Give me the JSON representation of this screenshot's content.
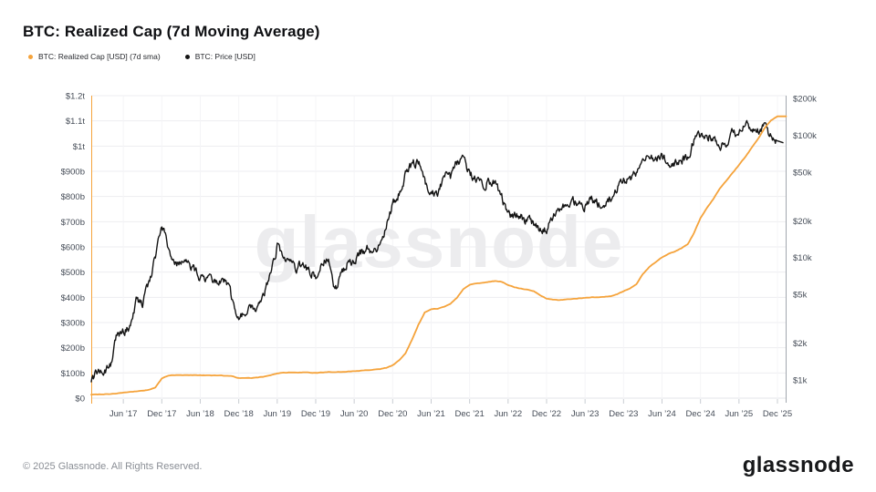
{
  "page": {
    "title": "BTC: Realized Cap (7d Moving Average)",
    "watermark": "glassnode",
    "footer": {
      "copyright": "© 2025 Glassnode. All Rights Reserved.",
      "logo": "glassnode"
    }
  },
  "legend": [
    {
      "label": "BTC: Realized Cap [USD] (7d sma)",
      "color": "#F5A33B"
    },
    {
      "label": "BTC: Price [USD]",
      "color": "#141414"
    }
  ],
  "chart_data": {
    "type": "line",
    "title": "BTC: Realized Cap (7d Moving Average)",
    "grid": true,
    "legend_position": "top-left",
    "x_start_month": "2017-01",
    "x_interval": "monthly",
    "x_axis": {
      "tick_labels": [
        "Jun ’17",
        "Dec ’17",
        "Jun ’18",
        "Dec ’18",
        "Jun ’19",
        "Dec ’19",
        "Jun ’20",
        "Dec ’20",
        "Jun ’21",
        "Dec ’21",
        "Jun ’22",
        "Dec ’22",
        "Jun ’23",
        "Dec ’23",
        "Jun ’24",
        "Dec ’24",
        "Jun ’25",
        "Dec ’25"
      ],
      "first_tick_month_index": 5,
      "tick_every_months": 6
    },
    "left_axis": {
      "scale": "linear",
      "unit": "USD",
      "max_billions": 1200,
      "min_billions": 0,
      "tick_values_billions": [
        1200,
        1100,
        1000,
        900,
        800,
        700,
        600,
        500,
        400,
        300,
        200,
        100,
        0
      ],
      "tick_labels": [
        "$1.2t",
        "$1.1t",
        "$1t",
        "$900b",
        "$800b",
        "$700b",
        "$600b",
        "$500b",
        "$400b",
        "$300b",
        "$200b",
        "$100b",
        "$0"
      ]
    },
    "right_axis": {
      "scale": "log",
      "unit": "USD",
      "top_value": 200000,
      "tick_values": [
        200000,
        100000,
        50000,
        20000,
        10000,
        5000,
        2000,
        1000
      ],
      "tick_labels": [
        "$200k",
        "$100k",
        "$50k",
        "$20k",
        "$10k",
        "$5k",
        "$2k",
        "$1k"
      ]
    },
    "series": [
      {
        "name": "BTC: Realized Cap [USD] (7d sma)",
        "axis": "left",
        "unit": "USD billions",
        "color": "#F5A33B",
        "values": [
          14,
          15,
          16,
          17,
          19,
          22,
          24,
          27,
          30,
          33,
          42,
          78,
          90,
          91,
          91,
          91,
          92,
          91,
          91,
          90,
          90,
          89,
          87,
          80,
          79,
          80,
          82,
          86,
          92,
          98,
          101,
          102,
          101,
          102,
          101,
          100,
          102,
          104,
          102,
          104,
          106,
          107,
          109,
          112,
          113,
          115,
          120,
          131,
          150,
          178,
          230,
          290,
          340,
          352,
          355,
          362,
          375,
          398,
          432,
          450,
          455,
          458,
          462,
          465,
          462,
          448,
          440,
          435,
          430,
          425,
          408,
          395,
          390,
          389,
          391,
          394,
          396,
          398,
          400,
          400,
          401,
          404,
          412,
          424,
          436,
          452,
          492,
          520,
          540,
          558,
          572,
          582,
          594,
          610,
          655,
          715,
          755,
          790,
          830,
          862,
          893,
          925,
          958,
          995,
          1030,
          1072,
          1102,
          1118
        ]
      },
      {
        "name": "BTC: Price [USD]",
        "axis": "right",
        "unit": "USD",
        "color": "#141414",
        "values": [
          970,
          1180,
          1080,
          1350,
          2300,
          2500,
          2700,
          4400,
          4200,
          6100,
          9900,
          19000,
          11500,
          8700,
          8500,
          8900,
          8300,
          6500,
          7000,
          6300,
          6500,
          6450,
          4400,
          3400,
          3600,
          3800,
          4000,
          5300,
          8000,
          12500,
          10200,
          10300,
          8300,
          8900,
          7600,
          7200,
          9300,
          9600,
          5300,
          7200,
          9300,
          9300,
          10900,
          11700,
          10800,
          13000,
          17500,
          27000,
          34000,
          48000,
          57000,
          61000,
          42000,
          34000,
          33000,
          47000,
          45000,
          59000,
          63000,
          48000,
          42000,
          40000,
          42000,
          41000,
          31000,
          22000,
          21500,
          22500,
          19500,
          19500,
          17000,
          16800,
          21500,
          23500,
          26500,
          29500,
          27000,
          26500,
          30000,
          27500,
          26300,
          30500,
          36500,
          42500,
          43500,
          51000,
          68000,
          65500,
          64500,
          66500,
          60000,
          60500,
          60500,
          66500,
          90000,
          101000,
          100000,
          95000,
          84000,
          81000,
          103000,
          106000,
          117000,
          120000,
          113000,
          121000,
          95000,
          90000
        ]
      }
    ]
  }
}
